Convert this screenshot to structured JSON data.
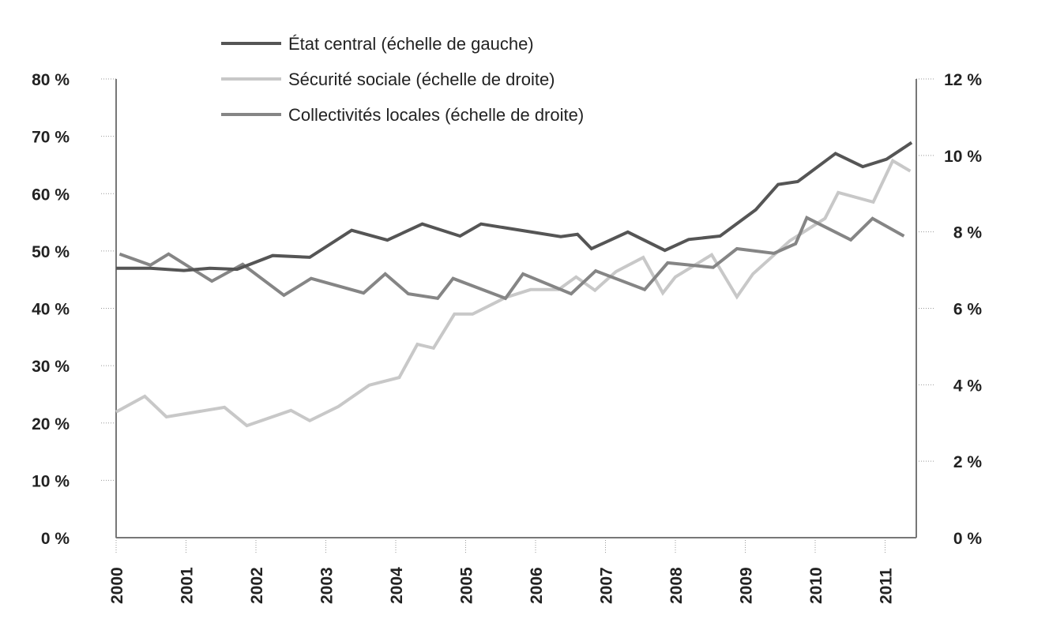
{
  "chart_data": {
    "type": "line",
    "title": "",
    "xlabel": "",
    "ylabel_left": "",
    "ylabel_right": "",
    "xlim": [
      2000,
      2011.5
    ],
    "ylim_left": [
      0,
      80
    ],
    "ylim_right": [
      0,
      12
    ],
    "x_ticks": [
      "2000",
      "2001",
      "2002",
      "2003",
      "2004",
      "2005",
      "2006",
      "2007",
      "2008",
      "2009",
      "2010",
      "2011"
    ],
    "y_left_ticks": [
      "0 %",
      "10 %",
      "20 %",
      "30 %",
      "40 %",
      "50 %",
      "60 %",
      "70 %",
      "80 %"
    ],
    "y_right_ticks": [
      "0 %",
      "2 %",
      "4 %",
      "6 %",
      "8 %",
      "10 %",
      "12 %"
    ],
    "legend_position": "top-center",
    "series": [
      {
        "name": "État central (échelle de gauche)",
        "axis": "left",
        "color": "#555555",
        "x": [
          2000.0,
          2000.49,
          2000.97,
          2001.34,
          2001.73,
          2002.24,
          2002.77,
          2003.37,
          2003.88,
          2004.38,
          2004.92,
          2005.22,
          2006.36,
          2006.6,
          2006.8,
          2007.32,
          2007.85,
          2008.19,
          2008.64,
          2009.15,
          2009.47,
          2009.75,
          2010.29,
          2010.68,
          2011.02,
          2011.38
        ],
        "y": [
          47.0,
          47.0,
          46.6,
          47.0,
          46.8,
          49.2,
          48.9,
          53.6,
          51.9,
          54.7,
          52.6,
          54.7,
          52.5,
          52.9,
          50.4,
          53.3,
          50.1,
          52.0,
          52.6,
          57.2,
          61.6,
          62.1,
          67.0,
          64.7,
          66.0,
          68.9
        ]
      },
      {
        "name": "Sécurité sociale (échelle de droite)",
        "axis": "right",
        "color": "#c8c8c8",
        "x": [
          2000.0,
          2000.41,
          2000.72,
          2001.28,
          2001.55,
          2001.87,
          2002.5,
          2002.77,
          2003.18,
          2003.62,
          2004.05,
          2004.31,
          2004.54,
          2004.84,
          2005.1,
          2005.57,
          2005.93,
          2006.33,
          2006.58,
          2006.85,
          2007.15,
          2007.54,
          2007.82,
          2008.0,
          2008.52,
          2008.88,
          2009.11,
          2009.64,
          2010.14,
          2010.33,
          2010.83,
          2011.11,
          2011.36
        ],
        "y": [
          3.29,
          3.7,
          3.16,
          3.33,
          3.41,
          2.93,
          3.33,
          3.06,
          3.43,
          3.99,
          4.19,
          5.06,
          4.96,
          5.85,
          5.85,
          6.28,
          6.49,
          6.49,
          6.82,
          6.47,
          6.96,
          7.33,
          6.4,
          6.82,
          7.4,
          6.3,
          6.9,
          7.77,
          8.35,
          9.03,
          8.78,
          9.86,
          9.59
        ]
      },
      {
        "name": "Collectivités locales (échelle de droite)",
        "axis": "right",
        "color": "#858585",
        "x": [
          2000.05,
          2000.49,
          2000.75,
          2001.37,
          2001.81,
          2002.4,
          2002.79,
          2003.54,
          2003.85,
          2004.18,
          2004.6,
          2004.82,
          2005.57,
          2005.82,
          2006.51,
          2006.86,
          2007.56,
          2007.89,
          2008.54,
          2008.88,
          2009.41,
          2009.72,
          2009.88,
          2010.51,
          2010.82,
          2011.27
        ],
        "y": [
          7.42,
          7.13,
          7.42,
          6.71,
          7.15,
          6.34,
          6.78,
          6.4,
          6.9,
          6.38,
          6.26,
          6.78,
          6.26,
          6.9,
          6.38,
          6.98,
          6.49,
          7.19,
          7.07,
          7.56,
          7.44,
          7.69,
          8.37,
          7.79,
          8.35,
          7.89
        ]
      }
    ]
  }
}
